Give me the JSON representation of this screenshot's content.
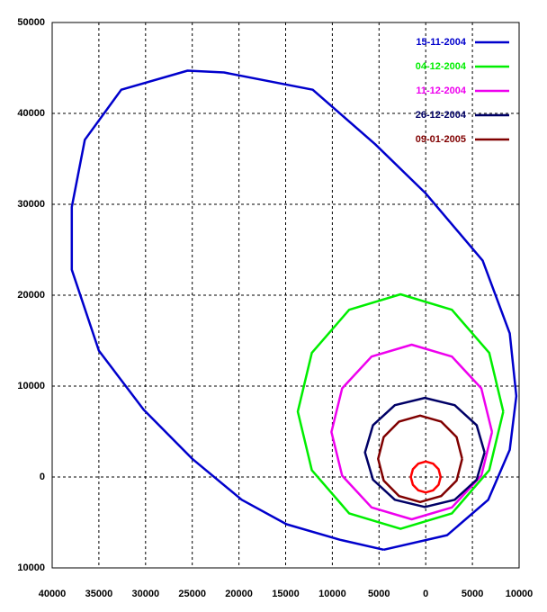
{
  "chart_data": {
    "type": "line",
    "xlim": [
      -40000,
      10000
    ],
    "xticks": [
      {
        "value": -40000,
        "label": "40000"
      },
      {
        "value": -35000,
        "label": "35000"
      },
      {
        "value": -30000,
        "label": "30000"
      },
      {
        "value": -25000,
        "label": "25000"
      },
      {
        "value": -20000,
        "label": "20000"
      },
      {
        "value": -15000,
        "label": "15000"
      },
      {
        "value": -10000,
        "label": "10000"
      },
      {
        "value": -5000,
        "label": "5000"
      },
      0,
      5000,
      10000
    ],
    "ylim": [
      -10000,
      50000
    ],
    "yticks": [
      {
        "value": -10000,
        "label": "10000"
      },
      0,
      10000,
      20000,
      30000,
      40000,
      50000
    ],
    "grid": true,
    "legend": "top-right",
    "series": [
      {
        "name": "15-11-2004",
        "color": "#0000cc",
        "x": [
          -4500,
          -9200,
          -14900,
          -19700,
          -25000,
          -30200,
          -35000,
          -37900,
          -37900,
          -36500,
          -32600,
          -25500,
          -21600,
          -12100,
          -5400,
          0,
          6100,
          9000,
          9700,
          9000,
          6700,
          2300,
          -4500
        ],
        "y": [
          -8000,
          -6900,
          -5200,
          -2500,
          2000,
          7400,
          13900,
          22800,
          29700,
          37100,
          42600,
          44700,
          44500,
          42600,
          36600,
          31200,
          23800,
          15800,
          8900,
          3000,
          -2500,
          -6400,
          -8000
        ]
      },
      {
        "name": "04-12-2004",
        "color": "#00ee00",
        "x": [
          8300,
          6800,
          2800,
          -2700,
          -8200,
          -12200,
          -13700,
          -12200,
          -8200,
          -2700,
          2800,
          6800,
          8300
        ],
        "y": [
          7200,
          13650,
          18400,
          20100,
          18400,
          13650,
          7200,
          750,
          -4000,
          -5700,
          -4000,
          750,
          7200
        ]
      },
      {
        "name": "11-12-2004",
        "color": "#ee00ee",
        "x": [
          7100,
          5950,
          2800,
          -1500,
          -5800,
          -8950,
          -10100,
          -8950,
          -5800,
          -1500,
          2800,
          5950,
          7100
        ],
        "y": [
          4950,
          9750,
          13250,
          14550,
          13250,
          9750,
          4950,
          150,
          -3350,
          -4650,
          -3350,
          150,
          4950
        ]
      },
      {
        "name": "26-12-2004",
        "color": "#000066",
        "x": [
          6300,
          5450,
          3100,
          -100,
          -3300,
          -5650,
          -6500,
          -5650,
          -3300,
          -100,
          3100,
          5450,
          6300
        ],
        "y": [
          2700,
          5700,
          7900,
          8700,
          7900,
          5700,
          2700,
          -300,
          -2500,
          -3300,
          -2500,
          -300,
          2700
        ]
      },
      {
        "name": "09-01-2005",
        "color": "#800000",
        "x": [
          3900,
          3300,
          1650,
          -600,
          -2850,
          -4500,
          -5100,
          -4500,
          -2850,
          -600,
          1650,
          3300,
          3900
        ],
        "y": [
          2000,
          4400,
          6100,
          6750,
          6100,
          4400,
          2000,
          -400,
          -2100,
          -2750,
          -2100,
          -400,
          2000
        ]
      },
      {
        "color": "#ff0000",
        "x": [
          1600,
          1380,
          800,
          0,
          -800,
          -1380,
          -1600,
          -1380,
          -800,
          0,
          800,
          1380,
          1600
        ],
        "y": [
          0,
          850,
          1470,
          1700,
          1470,
          850,
          0,
          -850,
          -1470,
          -1700,
          -1470,
          -850,
          0
        ]
      }
    ]
  }
}
